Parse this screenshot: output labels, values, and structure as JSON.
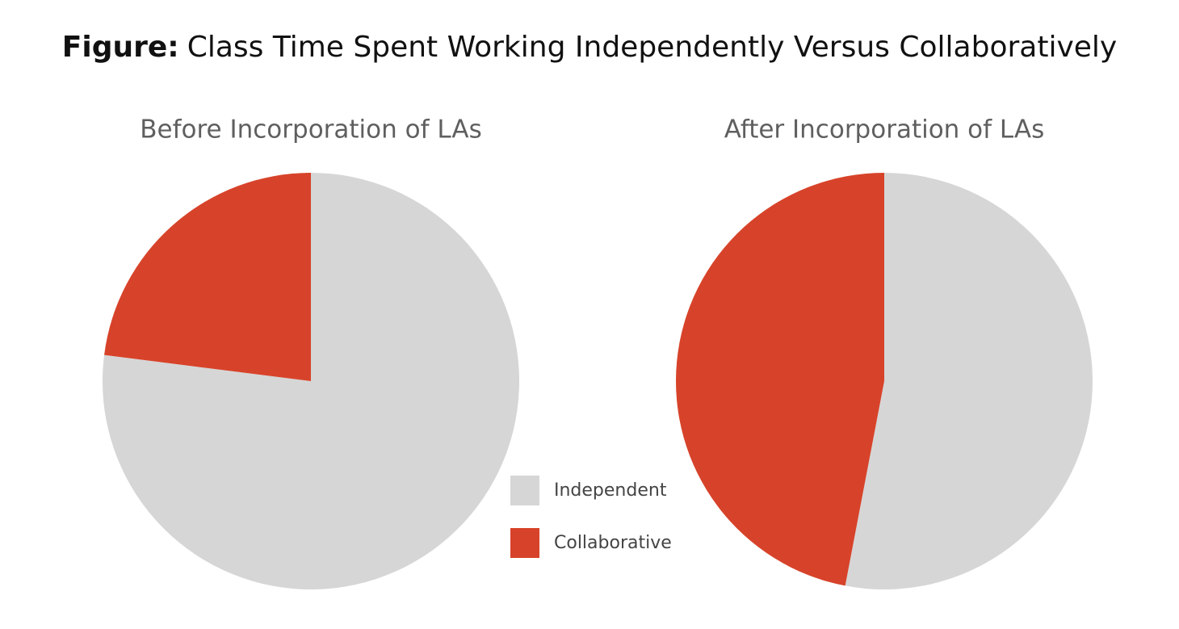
{
  "title_prefix": "Figure:",
  "title": "Class Time Spent Working Independently Versus Collaboratively",
  "legend": {
    "labels": [
      "Independent",
      "Collaborative"
    ],
    "colors": [
      "#d6d6d6",
      "#d7432a"
    ]
  },
  "chart_data": [
    {
      "type": "pie",
      "title": "Before Incorporation of LAs",
      "values": [
        77,
        23
      ]
    },
    {
      "type": "pie",
      "title": "After Incorporation of LAs",
      "values": [
        53,
        47
      ]
    }
  ]
}
